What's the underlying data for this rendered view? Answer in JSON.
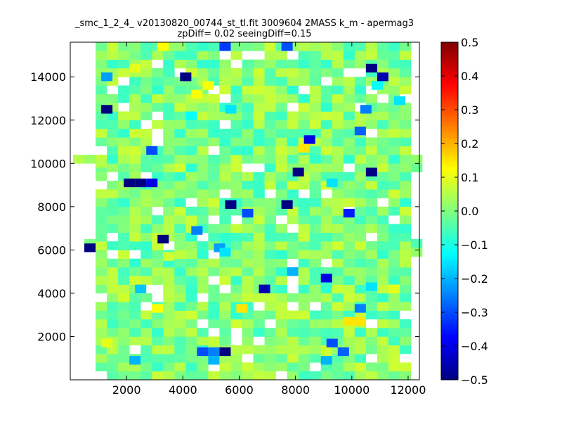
{
  "chart_data": {
    "type": "heatmap",
    "title_line1": "_smc_1_2_4_ v20130820_00744_st_tl.fit 3009604 2MASS k_m - apermag3",
    "title_line2": "zpDiff= 0.02 seeingDiff=0.15",
    "xlabel": "",
    "ylabel": "",
    "xlim": [
      0,
      12400
    ],
    "ylim": [
      0,
      15600
    ],
    "xticks": [
      2000,
      4000,
      6000,
      8000,
      10000,
      12000
    ],
    "yticks": [
      2000,
      4000,
      6000,
      8000,
      10000,
      12000,
      14000
    ],
    "grid": false,
    "colorbar": {
      "colormap": "jet",
      "range": [
        -0.5,
        0.5
      ],
      "ticks": [
        -0.5,
        -0.4,
        -0.3,
        -0.2,
        -0.1,
        0.0,
        0.1,
        0.2,
        0.3,
        0.4,
        0.5
      ],
      "tick_labels": [
        "−0.5",
        "−0.4",
        "−0.3",
        "−0.2",
        "−0.1",
        "0.0",
        "0.1",
        "0.2",
        "0.3",
        "0.4",
        "0.5"
      ]
    },
    "cell_size": 400,
    "x_start": 0,
    "y_start": 0,
    "cells_note": "",
    "cells": [
      [
        5500,
        15400,
        -0.32
      ],
      [
        7700,
        15400,
        -0.3
      ],
      [
        3300,
        15400,
        0.12
      ],
      [
        10700,
        14400,
        -0.5
      ],
      [
        11100,
        14000,
        -0.45
      ],
      [
        4100,
        14000,
        -0.5
      ],
      [
        1300,
        14000,
        -0.22
      ],
      [
        2300,
        14400,
        0.1
      ],
      [
        4900,
        13600,
        0.12
      ],
      [
        4500,
        13200,
        0.12
      ],
      [
        10900,
        13600,
        -0.12
      ],
      [
        1300,
        12500,
        -0.5
      ],
      [
        10500,
        12500,
        -0.25
      ],
      [
        11700,
        12900,
        -0.15
      ],
      [
        5700,
        12500,
        -0.15
      ],
      [
        4300,
        12200,
        -0.12
      ],
      [
        10300,
        11500,
        -0.28
      ],
      [
        8500,
        11100,
        -0.4
      ],
      [
        8300,
        10700,
        0.15
      ],
      [
        2900,
        10600,
        -0.3
      ],
      [
        1100,
        10000,
        0.05
      ],
      [
        8100,
        9600,
        -0.5
      ],
      [
        10700,
        9600,
        -0.5
      ],
      [
        2100,
        9100,
        -0.5
      ],
      [
        2500,
        9100,
        -0.5
      ],
      [
        2900,
        9100,
        -0.4
      ],
      [
        9300,
        9100,
        -0.15
      ],
      [
        5700,
        8100,
        -0.5
      ],
      [
        7700,
        8100,
        -0.5
      ],
      [
        6300,
        7700,
        -0.3
      ],
      [
        9900,
        7700,
        -0.35
      ],
      [
        4500,
        6900,
        -0.25
      ],
      [
        3300,
        6500,
        -0.5
      ],
      [
        700,
        6100,
        -0.5
      ],
      [
        5300,
        6100,
        -0.22
      ],
      [
        5500,
        5900,
        -0.15
      ],
      [
        3500,
        5700,
        0.08
      ],
      [
        7900,
        5000,
        -0.2
      ],
      [
        9100,
        4700,
        -0.4
      ],
      [
        6900,
        4200,
        -0.45
      ],
      [
        10700,
        4300,
        -0.15
      ],
      [
        11500,
        4200,
        0.1
      ],
      [
        2500,
        4200,
        -0.18
      ],
      [
        3100,
        3300,
        0.12
      ],
      [
        6100,
        3300,
        0.15
      ],
      [
        10300,
        3300,
        -0.25
      ],
      [
        9900,
        2700,
        0.15
      ],
      [
        10300,
        2700,
        0.15
      ],
      [
        1300,
        1700,
        0.1
      ],
      [
        4700,
        1300,
        -0.3
      ],
      [
        5500,
        1300,
        -0.5
      ],
      [
        5100,
        1300,
        -0.25
      ],
      [
        5100,
        900,
        -0.2
      ],
      [
        9300,
        1700,
        -0.3
      ],
      [
        9700,
        1300,
        -0.28
      ],
      [
        9100,
        900,
        -0.2
      ],
      [
        2300,
        900,
        -0.2
      ]
    ]
  }
}
